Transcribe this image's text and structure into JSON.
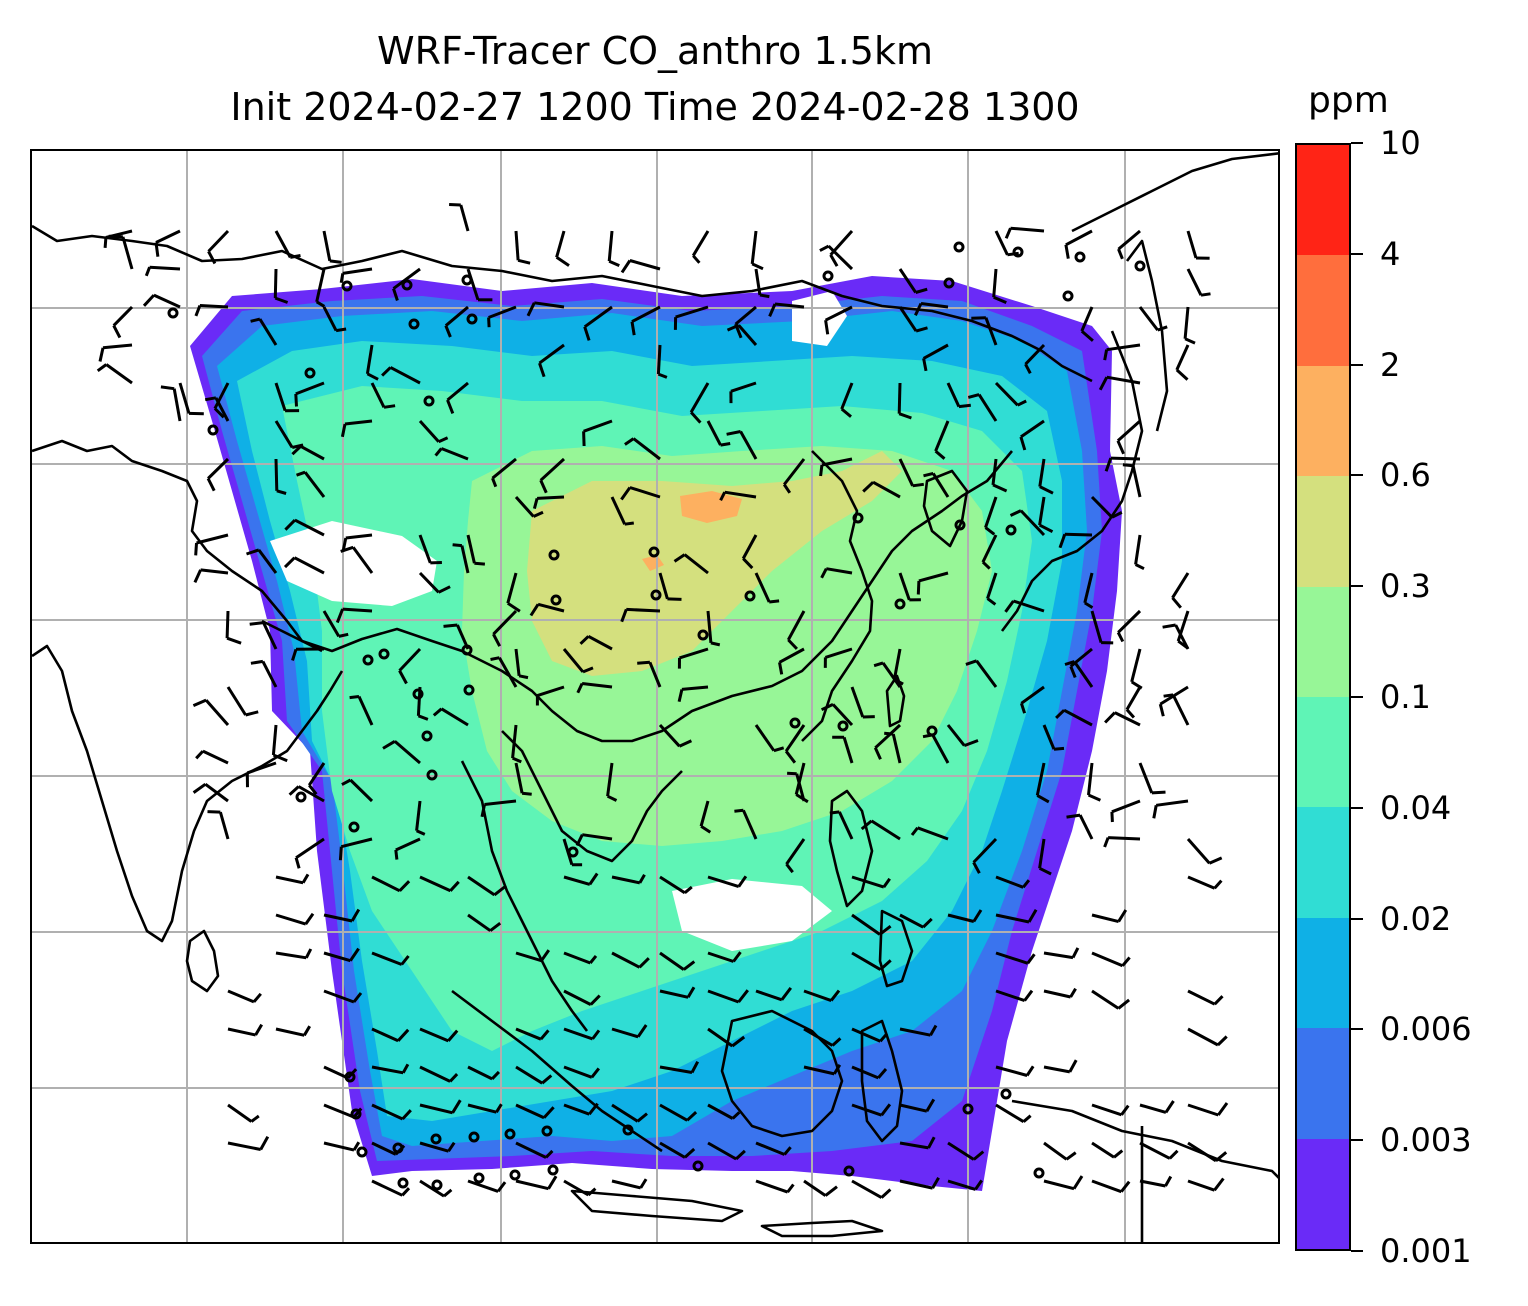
{
  "title": {
    "line1": "WRF-Tracer CO_anthro 1.5km",
    "line2": "Init 2024-02-27 1200 Time 2024-02-28 1300"
  },
  "colorbar": {
    "unit": "ppm",
    "levels": [
      "0.001",
      "0.003",
      "0.006",
      "0.02",
      "0.04",
      "0.1",
      "0.3",
      "0.6",
      "2",
      "4",
      "10"
    ],
    "colors": [
      "#6a2bf7",
      "#3a74ee",
      "#0fb0e6",
      "#30ddd4",
      "#5ff4b6",
      "#97f697",
      "#d4e07e",
      "#fdb060",
      "#ff6e3d",
      "#ff2416"
    ]
  },
  "map": {
    "ocean_color": "#ffffff",
    "coastline_color": "#000000",
    "gridline_color": "#b0b0b0",
    "wind_barb_color": "#000000"
  }
}
